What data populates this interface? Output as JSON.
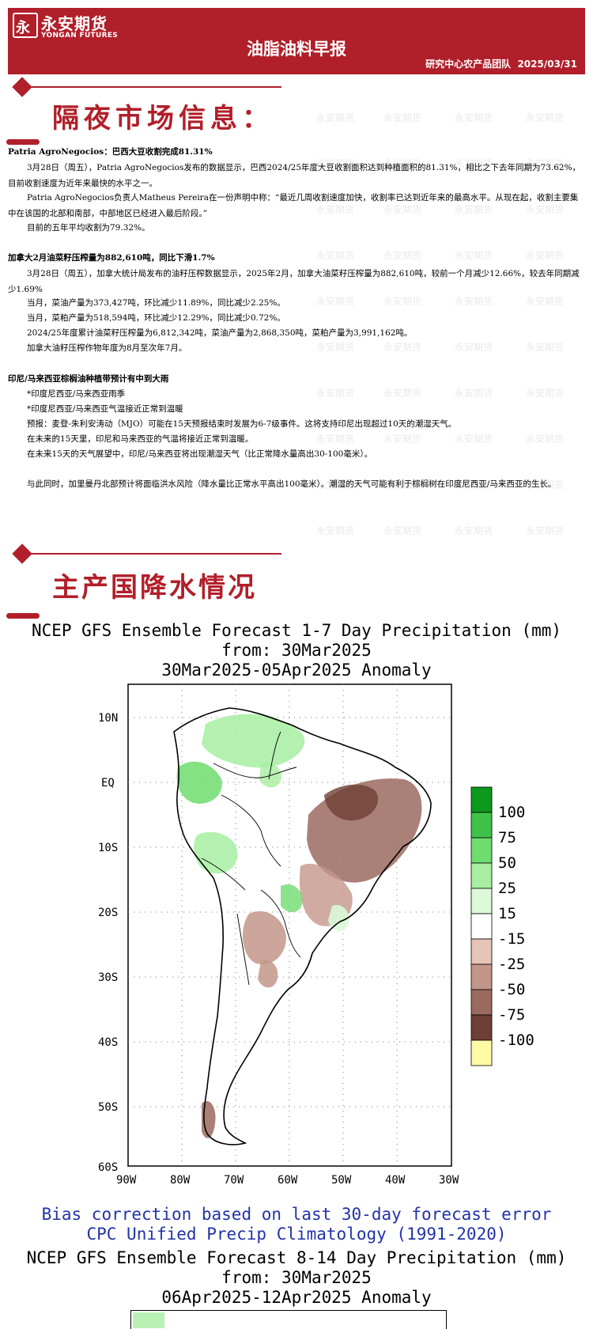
{
  "header": {
    "logo_glyph": "永",
    "company_cn": "永安期货",
    "company_en": "YONGAN FUTURES",
    "report_title": "油脂油料早报",
    "team": "研究中心农产品团队",
    "date": "2025/03/31"
  },
  "watermark": "永安期货",
  "sections": {
    "overnight_title": "隔夜市场信息：",
    "precip_title": "主产国降水情况"
  },
  "articles": [
    {
      "headline": "Patria AgroNegocios：巴西大豆收割完成81.31%",
      "paragraphs": [
        "3月28日（周五），Patria AgroNegocios发布的数据显示，巴西2024/25年度大豆收割面积达到种植面积的81.31%，相比之下去年同期为73.62%，目前收割速度为近年来最快的水平之一。",
        "Patria AgroNegocios负责人Matheus Pereira在一份声明中称：“最近几周收割速度加快，收割率已达到近年来的最高水平。从现在起，收割主要集中在该国的北部和南部，中部地区已经进入最后阶段。”",
        "目前的五年平均收割为79.32%。"
      ]
    },
    {
      "headline": "加拿大2月油菜籽压榨量为882,610吨，同比下滑1.7%",
      "paragraphs": [
        "3月28日（周五），加拿大统计局发布的油籽压榨数据显示，2025年2月，加拿大油菜籽压榨量为882,610吨，较前一个月减少12.66%，较去年同期减少1.69%",
        "当月，菜油产量为373,427吨，环比减少11.89%，同比减少2.25%。",
        "当月，菜粕产量为518,594吨，环比减少12.29%，同比减少0.72%。",
        "2024/25年度累计油菜籽压榨量为6,812,342吨，菜油产量为2,868,350吨，菜粕产量为3,991,162吨。",
        "加拿大油籽压榨作物年度为8月至次年7月。"
      ]
    },
    {
      "headline": "印尼/马来西亚棕榈油种植带预计有中到大雨",
      "paragraphs": [
        "*印度尼西亚/马来西亚雨季",
        "*印度尼西亚/马来西亚气温接近正常到温暖",
        "预报：麦登-朱利安涛动（MJO）可能在15天预报结束时发展为6-7级事件。这将支持印尼出现超过10天的潮湿天气。",
        "在未来的15天里，印尼和马来西亚的气温将接近正常到温暖。",
        "在未来15天的天气展望中，印尼/马来西亚将出现潮湿天气（比正常降水量高出30-100毫米）。",
        "与此同时，加里曼丹北部预计将面临洪水风险（降水量比正常水平高出100毫米）。潮湿的天气可能有利于棕榈树在印度尼西亚/马来西亚的生长。"
      ]
    }
  ],
  "map1": {
    "title_line1": "NCEP GFS Ensemble Forecast 1-7 Day Precipitation (mm)",
    "title_line2": "from: 30Mar2025",
    "title_line3": "30Mar2025-05Apr2025 Anomaly",
    "lat_labels": [
      "10N",
      "EQ",
      "10S",
      "20S",
      "30S",
      "40S",
      "50S",
      "60S"
    ],
    "lon_labels": [
      "90W",
      "80W",
      "70W",
      "60W",
      "50W",
      "40W",
      "30W"
    ],
    "legend_labels": [
      "100",
      "75",
      "50",
      "25",
      "15",
      "-15",
      "-25",
      "-50",
      "-75",
      "-100"
    ],
    "legend_colors": [
      "#0c9a1c",
      "#3ec24a",
      "#6fdc6f",
      "#a7eea2",
      "#dcf8d8",
      "#ffffff",
      "#e6c4b8",
      "#c3968a",
      "#9b6b60",
      "#6e3f35",
      "#fffaa6"
    ],
    "bias_line1": "Bias correction based on last 30-day forecast error",
    "bias_line2": "CPC Unified Precip Climatology (1991-2020)"
  },
  "map2": {
    "title_line1": "NCEP GFS Ensemble Forecast 8-14 Day Precipitation (mm)",
    "title_line2": "from: 30Mar2025",
    "title_line3": "06Apr2025-12Apr2025 Anomaly"
  }
}
